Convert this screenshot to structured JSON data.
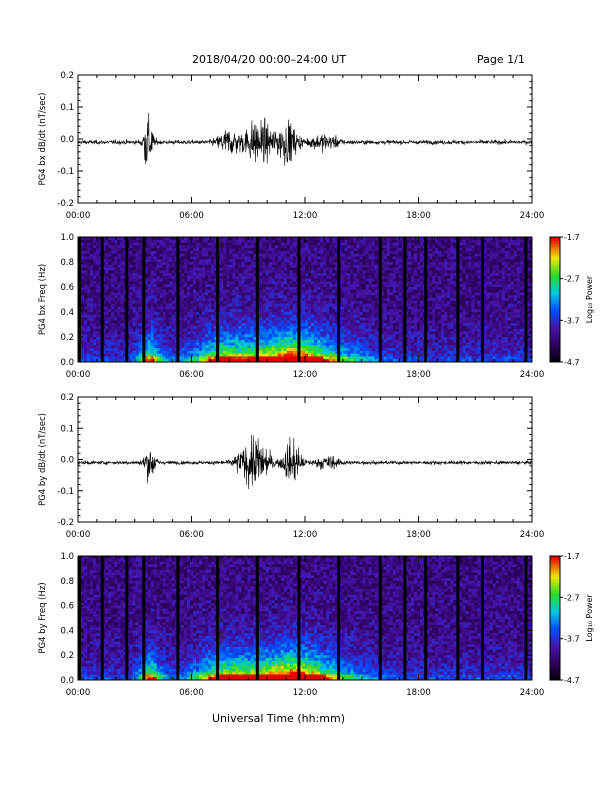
{
  "header": {
    "title": "2018/04/20  00:00–24:00 UT",
    "page": "Page 1/1"
  },
  "xaxis_label": "Universal Time (hh:mm)",
  "chart_data": [
    {
      "type": "line",
      "ylabel": "PG4 bx dB/dt (nT/sec)",
      "xticks": [
        "00:00",
        "06:00",
        "12:00",
        "18:00",
        "24:00"
      ],
      "yticks": [
        "0.2",
        "0.1",
        "0.0",
        "-0.1",
        "-0.2"
      ],
      "xlim": [
        0,
        24
      ],
      "ylim": [
        -0.2,
        0.2
      ],
      "bursts": [
        {
          "t": 3.7,
          "amp": 0.11,
          "width": 0.5
        },
        {
          "t": 8.0,
          "amp": 0.05,
          "width": 1.2
        },
        {
          "t": 9.5,
          "amp": 0.09,
          "width": 1.4
        },
        {
          "t": 11.0,
          "amp": 0.08,
          "width": 1.2
        },
        {
          "t": 13.0,
          "amp": 0.03,
          "width": 1.5
        }
      ],
      "noise": 0.008,
      "color": "#000000"
    },
    {
      "type": "heatmap",
      "ylabel": "PG4 bx Freq (Hz)",
      "xticks": [
        "00:00",
        "06:00",
        "12:00",
        "18:00",
        "24:00"
      ],
      "yticks": [
        "1.0",
        "0.8",
        "0.6",
        "0.4",
        "0.2",
        "0.0"
      ],
      "xlim": [
        0,
        24
      ],
      "ylim": [
        0.0,
        1.0
      ],
      "colorbar": {
        "label": "Log₁₀ Power",
        "ticks": [
          "-1.7",
          "-2.7",
          "-3.7",
          "-4.7"
        ],
        "range": [
          -4.7,
          -1.7
        ]
      },
      "gaps_hours": [
        0.0,
        1.2,
        2.5,
        3.4,
        5.2,
        7.3,
        9.4,
        11.6,
        13.7,
        15.9,
        17.2,
        18.3,
        20.0,
        21.3,
        23.6
      ]
    },
    {
      "type": "line",
      "ylabel": "PG4 by dB/dt (nT/sec)",
      "xticks": [
        "00:00",
        "06:00",
        "12:00",
        "18:00",
        "24:00"
      ],
      "yticks": [
        "0.2",
        "0.1",
        "0.0",
        "-0.1",
        "-0.2"
      ],
      "xlim": [
        0,
        24
      ],
      "ylim": [
        -0.2,
        0.2
      ],
      "bursts": [
        {
          "t": 3.8,
          "amp": 0.07,
          "width": 0.6
        },
        {
          "t": 9.3,
          "amp": 0.1,
          "width": 1.6
        },
        {
          "t": 11.3,
          "amp": 0.09,
          "width": 0.9
        },
        {
          "t": 13.2,
          "amp": 0.025,
          "width": 1.3
        }
      ],
      "noise": 0.007,
      "color": "#000000"
    },
    {
      "type": "heatmap",
      "ylabel": "PG4 by Freq (Hz)",
      "xticks": [
        "00:00",
        "06:00",
        "12:00",
        "18:00",
        "24:00"
      ],
      "yticks": [
        "1.0",
        "0.8",
        "0.6",
        "0.4",
        "0.2",
        "0.0"
      ],
      "xlim": [
        0,
        24
      ],
      "ylim": [
        0.0,
        1.0
      ],
      "colorbar": {
        "label": "Log₁₀ Power",
        "ticks": [
          "-1.7",
          "-2.7",
          "-3.7",
          "-4.7"
        ],
        "range": [
          -4.7,
          -1.7
        ]
      },
      "gaps_hours": [
        0.0,
        1.2,
        2.5,
        3.4,
        5.2,
        7.3,
        9.4,
        11.6,
        13.7,
        15.9,
        17.2,
        18.3,
        20.0,
        21.3,
        23.6
      ]
    }
  ]
}
